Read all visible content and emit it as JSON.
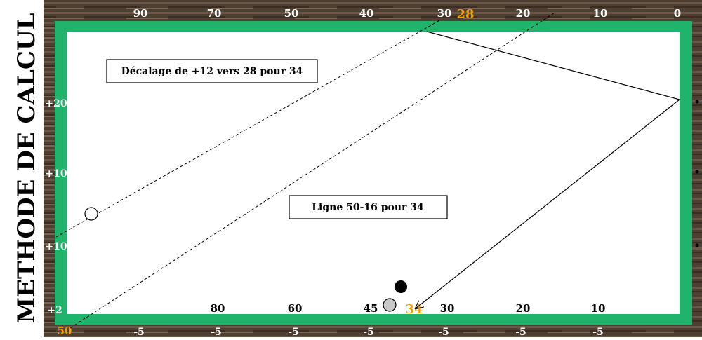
{
  "title": "METHODE DE CALCUL",
  "top_numbers": [
    "90",
    "70",
    "50",
    "40",
    "30",
    "28",
    "20",
    "10",
    "0"
  ],
  "left_numbers": [
    "+20",
    "+10",
    "+10",
    "+2"
  ],
  "bottom_outer_numbers": [
    "50",
    "-5",
    "-5",
    "-5",
    "-5",
    "-5",
    "-5",
    "-5"
  ],
  "bottom_inner_numbers": [
    "80",
    "60",
    "45",
    "34",
    "30",
    "20",
    "10"
  ],
  "annotations": [
    "Décalage de +12 vers 28 pour 34",
    "Ligne 50-16 pour 34"
  ]
}
